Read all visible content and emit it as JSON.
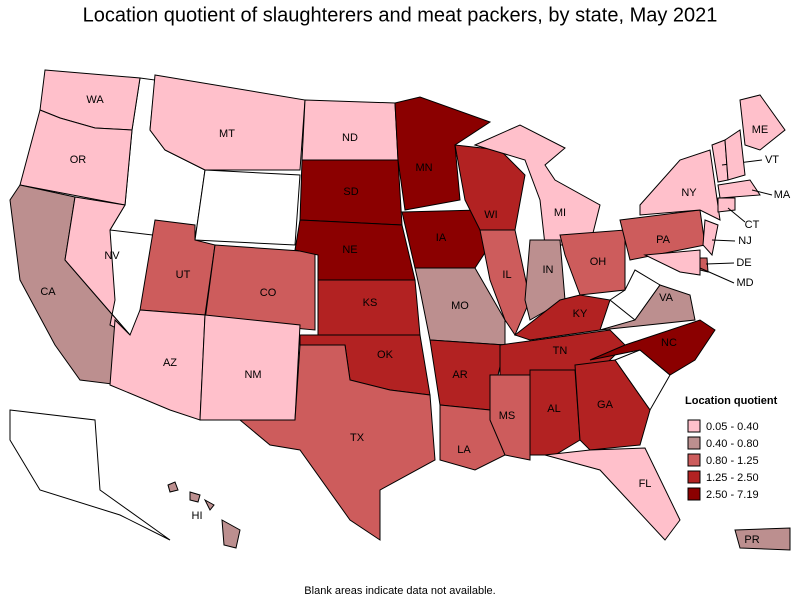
{
  "title": "Location quotient of slaughterers and meat packers, by state, May 2021",
  "legend": {
    "title": "Location quotient",
    "items": [
      {
        "label": "0.05 - 0.40",
        "color": "#ffc0cb"
      },
      {
        "label": "0.40 - 0.80",
        "color": "#bc8f8f"
      },
      {
        "label": "0.80 - 1.25",
        "color": "#cd5c5c"
      },
      {
        "label": "1.25 - 2.50",
        "color": "#b22222"
      },
      {
        "label": "2.50 - 7.19",
        "color": "#8b0000"
      }
    ]
  },
  "states": [
    {
      "label": "WA",
      "color": "#ffc0cb"
    },
    {
      "label": "OR",
      "color": "#ffc0cb"
    },
    {
      "label": "CA",
      "color": "#bc8f8f"
    },
    {
      "label": "NV",
      "color": "#ffc0cb"
    },
    {
      "label": "MT",
      "color": "#ffc0cb"
    },
    {
      "label": "UT",
      "color": "#cd5c5c"
    },
    {
      "label": "CO",
      "color": "#cd5c5c"
    },
    {
      "label": "AZ",
      "color": "#ffc0cb"
    },
    {
      "label": "NM",
      "color": "#ffc0cb"
    },
    {
      "label": "ND",
      "color": "#ffc0cb"
    },
    {
      "label": "SD",
      "color": "#8b0000"
    },
    {
      "label": "NE",
      "color": "#8b0000"
    },
    {
      "label": "KS",
      "color": "#b22222"
    },
    {
      "label": "OK",
      "color": "#b22222"
    },
    {
      "label": "TX",
      "color": "#cd5c5c"
    },
    {
      "label": "MN",
      "color": "#8b0000"
    },
    {
      "label": "IA",
      "color": "#8b0000"
    },
    {
      "label": "MO",
      "color": "#bc8f8f"
    },
    {
      "label": "AR",
      "color": "#b22222"
    },
    {
      "label": "LA",
      "color": "#cd5c5c"
    },
    {
      "label": "WI",
      "color": "#b22222"
    },
    {
      "label": "IL",
      "color": "#cd5c5c"
    },
    {
      "label": "MI",
      "color": "#ffc0cb"
    },
    {
      "label": "IN",
      "color": "#bc8f8f"
    },
    {
      "label": "OH",
      "color": "#cd5c5c"
    },
    {
      "label": "KY",
      "color": "#b22222"
    },
    {
      "label": "TN",
      "color": "#b22222"
    },
    {
      "label": "MS",
      "color": "#cd5c5c"
    },
    {
      "label": "AL",
      "color": "#b22222"
    },
    {
      "label": "GA",
      "color": "#b22222"
    },
    {
      "label": "FL",
      "color": "#ffc0cb"
    },
    {
      "label": "NC",
      "color": "#8b0000"
    },
    {
      "label": "VA",
      "color": "#bc8f8f"
    },
    {
      "label": "PA",
      "color": "#cd5c5c"
    },
    {
      "label": "NY",
      "color": "#ffc0cb"
    },
    {
      "label": "ME",
      "color": "#ffc0cb"
    },
    {
      "label": "VT",
      "color": "#ffc0cb"
    },
    {
      "label": null,
      "color": "#ffc0cb"
    },
    {
      "label": "MA",
      "color": "#ffc0cb"
    },
    {
      "label": "CT",
      "color": "#ffc0cb"
    },
    {
      "label": "NJ",
      "color": "#ffc0cb"
    },
    {
      "label": "DE",
      "color": "#cd5c5c"
    },
    {
      "label": "MD",
      "color": "#ffc0cb"
    },
    {
      "label": "HI",
      "color": "#bc8f8f"
    },
    {
      "label": "PR",
      "color": "#bc8f8f"
    }
  ],
  "footnote": "Blank areas indicate data not available."
}
